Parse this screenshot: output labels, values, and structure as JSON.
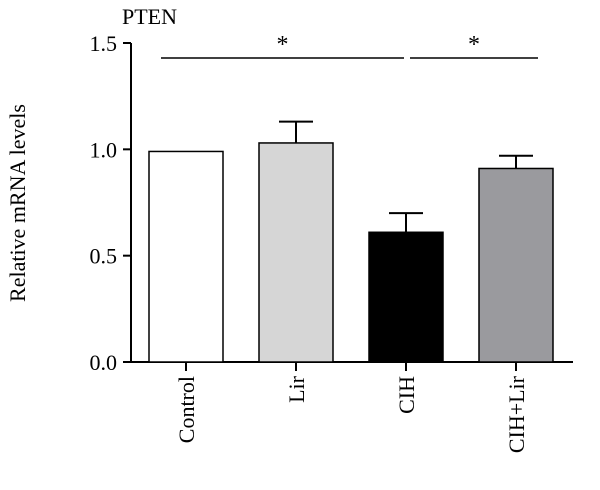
{
  "chart_data": {
    "type": "bar",
    "title": "PTEN",
    "ylabel": "Relative mRNA levels",
    "xlabel": "",
    "categories": [
      "Control",
      "Lir",
      "CIH",
      "CIH+Lir"
    ],
    "values": [
      0.99,
      1.03,
      0.61,
      0.91
    ],
    "errors": [
      0.0,
      0.1,
      0.09,
      0.06
    ],
    "colors": [
      "#ffffff",
      "#d6d6d6",
      "#000000",
      "#9a9a9e"
    ],
    "ylim": [
      0,
      1.5
    ],
    "yticks": [
      "0.0",
      "0.5",
      "1.0",
      "1.5"
    ],
    "significance": [
      {
        "from": 0,
        "to": 2,
        "label": "*"
      },
      {
        "from": 2,
        "to": 3,
        "label": "*"
      }
    ],
    "grid": false,
    "legend": "none"
  }
}
